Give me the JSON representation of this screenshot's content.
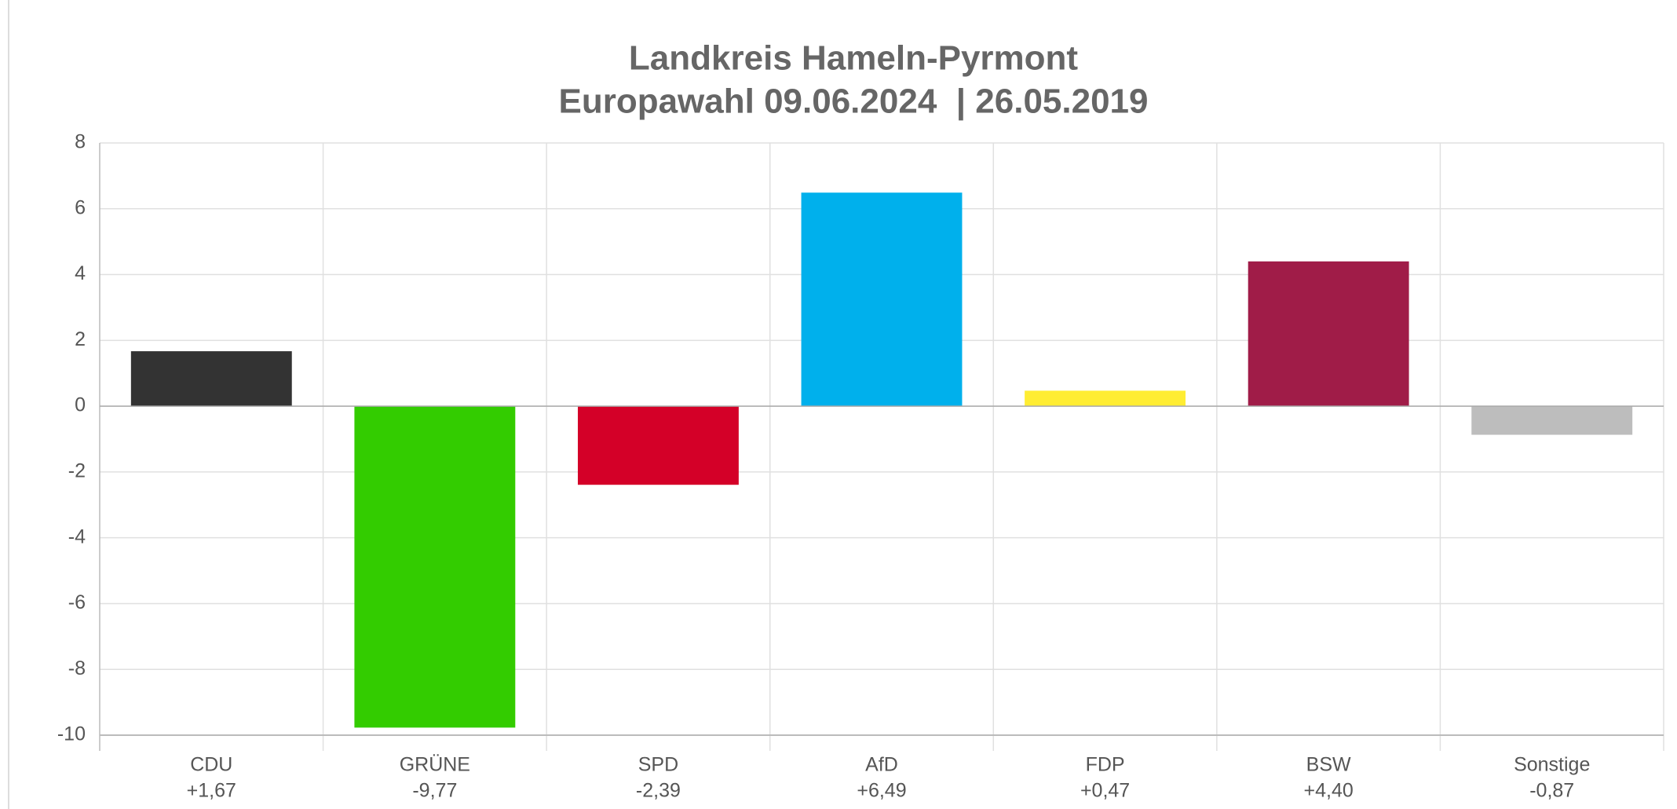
{
  "chart_data": {
    "type": "bar",
    "title": "Landkreis Hameln-Pyrmont",
    "subtitle": "Europawahl 09.06.2024  | 26.05.2019",
    "categories": [
      "CDU",
      "GRÜNE",
      "SPD",
      "AfD",
      "FDP",
      "BSW",
      "Sonstige"
    ],
    "values": [
      1.67,
      -9.77,
      -2.39,
      6.49,
      0.47,
      4.4,
      -0.87
    ],
    "value_labels": [
      "+1,67",
      "-9,77",
      "-2,39",
      "+6,49",
      "+0,47",
      "+4,40",
      "-0,87"
    ],
    "colors": [
      "#333333",
      "#33cc00",
      "#d40028",
      "#00b0ec",
      "#ffed33",
      "#a01c48",
      "#bdbdbd"
    ],
    "ylim": [
      -10,
      8
    ],
    "yticks": [
      8,
      6,
      4,
      2,
      0,
      -2,
      -4,
      -6,
      -8,
      -10
    ],
    "grid": true
  }
}
